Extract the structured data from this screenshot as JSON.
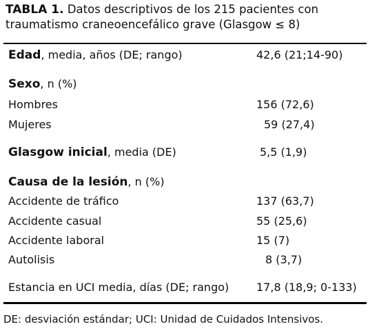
{
  "title": {
    "label": "TABLA 1.",
    "text": "Datos descriptivos de los 215 pacientes con traumatismo craneoencefálico grave (Glasgow ≤ 8)"
  },
  "table": {
    "rows": [
      {
        "label_bold": "Edad",
        "label": ", media, años (DE; rango)",
        "value": "42,6 (21;14-90)"
      },
      {
        "label_bold": "Sexo",
        "label": ", n (%)"
      },
      {
        "label": "Hombres",
        "value": "156 (72,6)"
      },
      {
        "label": "Mujeres",
        "value": "59 (27,4)"
      },
      {
        "label_bold": "Glasgow inicial",
        "label": ", media (DE)",
        "value": "5,5 (1,9)"
      },
      {
        "label_bold": "Causa de la lesión",
        "label": ", n (%)"
      },
      {
        "label": "Accidente de tráfico",
        "value": "137 (63,7)"
      },
      {
        "label": "Accidente casual",
        "value": "55 (25,6)"
      },
      {
        "label": "Accidente laboral",
        "value": "15 (7)"
      },
      {
        "label": "Autolisis",
        "value": "8 (3,7)"
      },
      {
        "label": "Estancia en UCI media, días (DE; rango)",
        "value": "17,8 (18,9; 0-133)"
      }
    ]
  },
  "footnote": "DE: desviación estándar; UCI: Unidad de Cuidados Intensivos."
}
